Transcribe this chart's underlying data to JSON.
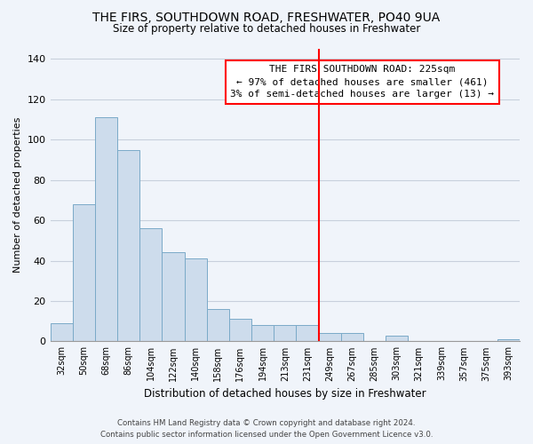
{
  "title": "THE FIRS, SOUTHDOWN ROAD, FRESHWATER, PO40 9UA",
  "subtitle": "Size of property relative to detached houses in Freshwater",
  "xlabel": "Distribution of detached houses by size in Freshwater",
  "ylabel": "Number of detached properties",
  "bar_labels": [
    "32sqm",
    "50sqm",
    "68sqm",
    "86sqm",
    "104sqm",
    "122sqm",
    "140sqm",
    "158sqm",
    "176sqm",
    "194sqm",
    "213sqm",
    "231sqm",
    "249sqm",
    "267sqm",
    "285sqm",
    "303sqm",
    "321sqm",
    "339sqm",
    "357sqm",
    "375sqm",
    "393sqm"
  ],
  "bar_values": [
    9,
    68,
    111,
    95,
    56,
    44,
    41,
    16,
    11,
    8,
    8,
    8,
    4,
    4,
    0,
    3,
    0,
    0,
    0,
    0,
    1
  ],
  "bar_color": "#cddcec",
  "bar_edge_color": "#7aaac8",
  "vline_x": 11.5,
  "vline_color": "red",
  "ylim": [
    0,
    145
  ],
  "yticks": [
    0,
    20,
    40,
    60,
    80,
    100,
    120,
    140
  ],
  "annotation_title": "THE FIRS SOUTHDOWN ROAD: 225sqm",
  "annotation_line1": "← 97% of detached houses are smaller (461)",
  "annotation_line2": "3% of semi-detached houses are larger (13) →",
  "footer1": "Contains HM Land Registry data © Crown copyright and database right 2024.",
  "footer2": "Contains public sector information licensed under the Open Government Licence v3.0.",
  "background_color": "#f0f4fa",
  "grid_color": "#c8d0dc"
}
